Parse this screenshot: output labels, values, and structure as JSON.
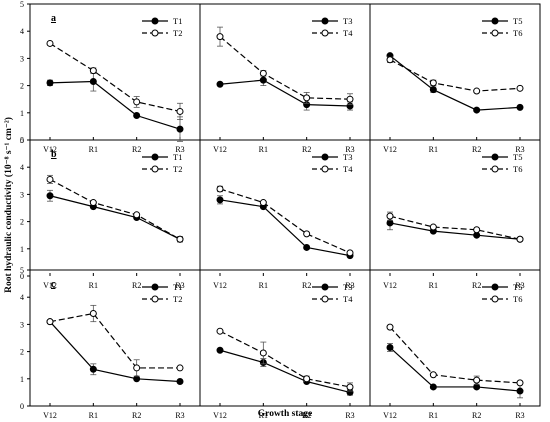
{
  "chart_data": {
    "type": "line",
    "xlabel": "Growth stage",
    "ylabel": "Root hydraulic conductivity (10⁻⁸ s⁻¹ cm⁻²)",
    "categories": [
      "V12",
      "R1",
      "R2",
      "R3"
    ],
    "ylim": [
      0,
      5
    ],
    "yticks": [
      0,
      1,
      2,
      3,
      4,
      5
    ],
    "grid": false,
    "legend_position": "top-right",
    "panel_labels": [
      "a",
      "b",
      "c"
    ],
    "panels": [
      {
        "row": 0,
        "col": 0,
        "label": "a",
        "series": [
          {
            "name": "T1",
            "style": "solid",
            "marker": "filled-circle",
            "values": [
              2.1,
              2.15,
              0.9,
              0.4
            ],
            "errors": [
              0.1,
              0.35,
              0.05,
              0.45
            ]
          },
          {
            "name": "T2",
            "style": "dashed",
            "marker": "open-circle",
            "values": [
              3.55,
              2.55,
              1.4,
              1.05
            ],
            "errors": [
              0.05,
              0.1,
              0.2,
              0.3
            ]
          }
        ]
      },
      {
        "row": 0,
        "col": 1,
        "series": [
          {
            "name": "T3",
            "style": "solid",
            "marker": "filled-circle",
            "values": [
              2.05,
              2.2,
              1.3,
              1.25
            ],
            "errors": [
              0.05,
              0.2,
              0.2,
              0.15
            ]
          },
          {
            "name": "T4",
            "style": "dashed",
            "marker": "open-circle",
            "values": [
              3.8,
              2.45,
              1.55,
              1.5
            ],
            "errors": [
              0.35,
              0.1,
              0.2,
              0.2
            ]
          }
        ]
      },
      {
        "row": 0,
        "col": 2,
        "series": [
          {
            "name": "T5",
            "style": "solid",
            "marker": "filled-circle",
            "values": [
              3.1,
              1.85,
              1.1,
              1.2
            ],
            "errors": [
              0.05,
              0.1,
              0.05,
              0.05
            ]
          },
          {
            "name": "T6",
            "style": "dashed",
            "marker": "open-circle",
            "values": [
              2.95,
              2.1,
              1.8,
              1.9
            ],
            "errors": [
              0.1,
              0.1,
              0.05,
              0.05
            ]
          }
        ]
      },
      {
        "row": 1,
        "col": 0,
        "label": "b",
        "series": [
          {
            "name": "T1",
            "style": "solid",
            "marker": "filled-circle",
            "values": [
              2.95,
              2.55,
              2.15,
              1.35
            ],
            "errors": [
              0.2,
              0.05,
              0.05,
              0.05
            ]
          },
          {
            "name": "T2",
            "style": "dashed",
            "marker": "open-circle",
            "values": [
              3.55,
              2.7,
              2.25,
              1.35
            ],
            "errors": [
              0.15,
              0.05,
              0.05,
              0.1
            ]
          }
        ]
      },
      {
        "row": 1,
        "col": 1,
        "series": [
          {
            "name": "T3",
            "style": "solid",
            "marker": "filled-circle",
            "values": [
              2.8,
              2.55,
              1.05,
              0.75
            ],
            "errors": [
              0.15,
              0.05,
              0.05,
              0.05
            ]
          },
          {
            "name": "T4",
            "style": "dashed",
            "marker": "open-circle",
            "values": [
              3.2,
              2.7,
              1.55,
              0.85
            ],
            "errors": [
              0.1,
              0.05,
              0.05,
              0.05
            ]
          }
        ]
      },
      {
        "row": 1,
        "col": 2,
        "series": [
          {
            "name": "T5",
            "style": "solid",
            "marker": "filled-circle",
            "values": [
              1.95,
              1.65,
              1.5,
              1.35
            ],
            "errors": [
              0.25,
              0.05,
              0.05,
              0.05
            ]
          },
          {
            "name": "T6",
            "style": "dashed",
            "marker": "open-circle",
            "values": [
              2.2,
              1.8,
              1.7,
              1.35
            ],
            "errors": [
              0.15,
              0.05,
              0.05,
              0.05
            ]
          }
        ]
      },
      {
        "row": 2,
        "col": 0,
        "label": "c",
        "series": [
          {
            "name": "T1",
            "style": "solid",
            "marker": "filled-circle",
            "values": [
              3.1,
              1.35,
              1.0,
              0.9
            ],
            "errors": [
              0.05,
              0.2,
              0.05,
              0.05
            ]
          },
          {
            "name": "T2",
            "style": "dashed",
            "marker": "open-circle",
            "values": [
              3.1,
              3.4,
              1.4,
              1.4
            ],
            "errors": [
              0.05,
              0.3,
              0.3,
              0.05
            ]
          }
        ]
      },
      {
        "row": 2,
        "col": 1,
        "series": [
          {
            "name": "T3",
            "style": "solid",
            "marker": "filled-circle",
            "values": [
              2.05,
              1.6,
              0.9,
              0.5
            ],
            "errors": [
              0.05,
              0.15,
              0.05,
              0.1
            ]
          },
          {
            "name": "T4",
            "style": "dashed",
            "marker": "open-circle",
            "values": [
              2.75,
              1.95,
              1.0,
              0.7
            ],
            "errors": [
              0.05,
              0.4,
              0.1,
              0.15
            ]
          }
        ]
      },
      {
        "row": 2,
        "col": 2,
        "series": [
          {
            "name": "T5",
            "style": "solid",
            "marker": "filled-circle",
            "values": [
              2.15,
              0.7,
              0.7,
              0.55
            ],
            "errors": [
              0.15,
              0.05,
              0.05,
              0.25
            ]
          },
          {
            "name": "T6",
            "style": "dashed",
            "marker": "open-circle",
            "values": [
              2.9,
              1.15,
              0.95,
              0.85
            ],
            "errors": [
              0.05,
              0.05,
              0.15,
              0.05
            ]
          }
        ]
      }
    ]
  }
}
